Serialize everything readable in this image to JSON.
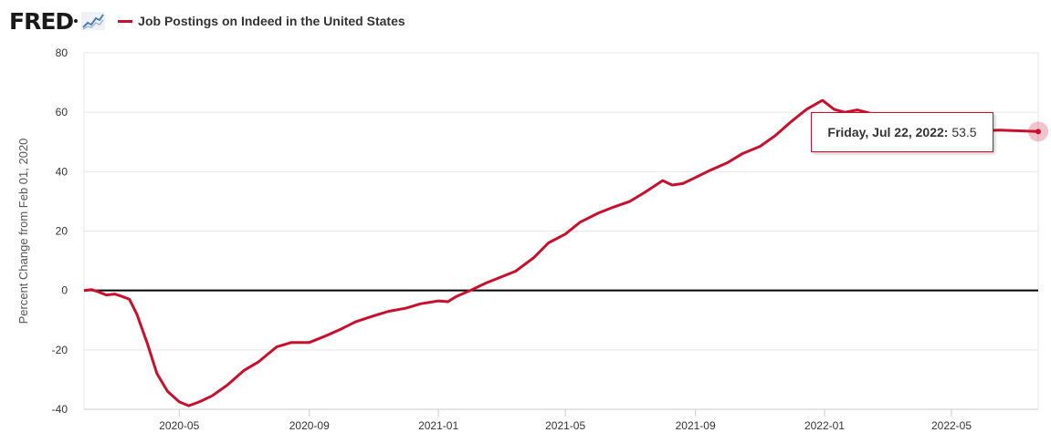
{
  "header": {
    "logo_text": "FRED",
    "series_label": "Job Postings on Indeed in the United States"
  },
  "icons": {
    "logo_graph": "line-chart-icon"
  },
  "colors": {
    "series": "#c8102e",
    "zero_line": "#000000",
    "grid": "#e6e6e6",
    "tooltip_border": "#c8102e"
  },
  "tooltip": {
    "date_label": "Friday, Jul 22, 2022:",
    "value_label": "53.5"
  },
  "chart_data": {
    "type": "line",
    "title": "",
    "xlabel": "",
    "ylabel": "Percent Change from Feb 01, 2020",
    "ylim": [
      -40,
      80
    ],
    "yticks": [
      -40,
      -20,
      0,
      20,
      40,
      60,
      80
    ],
    "xlim": [
      "2020-02-01",
      "2022-07-22"
    ],
    "xticks": [
      "2020-05",
      "2020-09",
      "2021-01",
      "2021-05",
      "2021-09",
      "2022-01",
      "2022-05"
    ],
    "grid": "horizontal",
    "series": [
      {
        "name": "Job Postings on Indeed in the United States",
        "points": [
          [
            "2020-02-01",
            0
          ],
          [
            "2020-02-08",
            0.3
          ],
          [
            "2020-02-15",
            -0.5
          ],
          [
            "2020-02-22",
            -1.5
          ],
          [
            "2020-03-01",
            -1.2
          ],
          [
            "2020-03-08",
            -2
          ],
          [
            "2020-03-15",
            -3
          ],
          [
            "2020-03-22",
            -8
          ],
          [
            "2020-04-01",
            -18
          ],
          [
            "2020-04-10",
            -28
          ],
          [
            "2020-04-20",
            -34
          ],
          [
            "2020-05-01",
            -37.5
          ],
          [
            "2020-05-10",
            -38.8
          ],
          [
            "2020-05-20",
            -37.5
          ],
          [
            "2020-06-01",
            -35.5
          ],
          [
            "2020-06-15",
            -32
          ],
          [
            "2020-07-01",
            -27
          ],
          [
            "2020-07-15",
            -24
          ],
          [
            "2020-08-01",
            -19
          ],
          [
            "2020-08-15",
            -17.5
          ],
          [
            "2020-09-01",
            -17.5
          ],
          [
            "2020-09-15",
            -15.5
          ],
          [
            "2020-10-01",
            -13
          ],
          [
            "2020-10-15",
            -10.5
          ],
          [
            "2020-11-01",
            -8.5
          ],
          [
            "2020-11-15",
            -7
          ],
          [
            "2020-12-01",
            -6
          ],
          [
            "2020-12-15",
            -4.5
          ],
          [
            "2021-01-01",
            -3.5
          ],
          [
            "2021-01-10",
            -3.8
          ],
          [
            "2021-01-18",
            -2
          ],
          [
            "2021-01-31",
            0
          ],
          [
            "2021-02-15",
            2.5
          ],
          [
            "2021-03-01",
            4.5
          ],
          [
            "2021-03-15",
            6.5
          ],
          [
            "2021-04-01",
            11
          ],
          [
            "2021-04-15",
            16
          ],
          [
            "2021-05-01",
            19
          ],
          [
            "2021-05-15",
            23
          ],
          [
            "2021-06-01",
            26
          ],
          [
            "2021-06-15",
            28
          ],
          [
            "2021-07-01",
            30
          ],
          [
            "2021-07-15",
            33
          ],
          [
            "2021-08-01",
            37
          ],
          [
            "2021-08-10",
            35.5
          ],
          [
            "2021-08-20",
            36
          ],
          [
            "2021-09-01",
            38
          ],
          [
            "2021-09-15",
            40.5
          ],
          [
            "2021-10-01",
            43
          ],
          [
            "2021-10-15",
            46
          ],
          [
            "2021-11-01",
            48.5
          ],
          [
            "2021-11-15",
            52
          ],
          [
            "2021-12-01",
            57
          ],
          [
            "2021-12-15",
            61
          ],
          [
            "2021-12-30",
            64
          ],
          [
            "2022-01-10",
            61
          ],
          [
            "2022-01-20",
            60
          ],
          [
            "2022-02-01",
            60.8
          ],
          [
            "2022-02-15",
            59.5
          ],
          [
            "2022-03-01",
            58.5
          ],
          [
            "2022-03-15",
            57.5
          ],
          [
            "2022-04-01",
            56.5
          ],
          [
            "2022-04-15",
            55.5
          ],
          [
            "2022-05-01",
            54.5
          ],
          [
            "2022-05-15",
            54
          ],
          [
            "2022-06-01",
            53.8
          ],
          [
            "2022-06-15",
            54
          ],
          [
            "2022-07-01",
            53.8
          ],
          [
            "2022-07-22",
            53.5
          ]
        ]
      }
    ]
  }
}
